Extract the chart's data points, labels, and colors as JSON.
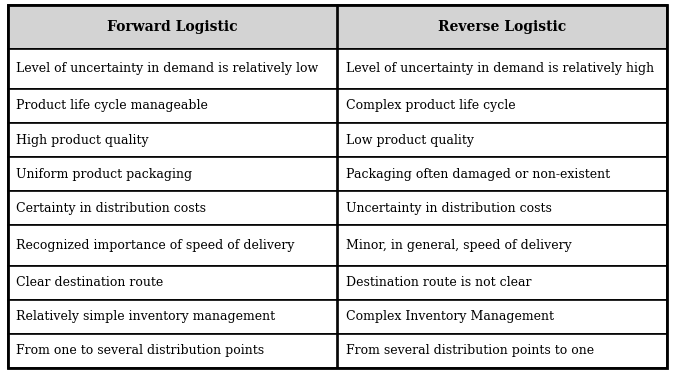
{
  "headers": [
    "Forward Logistic",
    "Reverse Logistic"
  ],
  "rows": [
    [
      "Level of uncertainty in demand is relatively low",
      "Level of uncertainty in demand is relatively high"
    ],
    [
      "Product life cycle manageable",
      "Complex product life cycle"
    ],
    [
      "High product quality",
      "Low product quality"
    ],
    [
      "Uniform product packaging",
      "Packaging often damaged or non-existent"
    ],
    [
      "Certainty in distribution costs",
      "Uncertainty in distribution costs"
    ],
    [
      "Recognized importance of speed of delivery",
      "Minor, in general, speed of delivery"
    ],
    [
      "Clear destination route",
      "Destination route is not clear"
    ],
    [
      "Relatively simple inventory management",
      "Complex Inventory Management"
    ],
    [
      "From one to several distribution points",
      "From several distribution points to one"
    ]
  ],
  "header_bg": "#d3d3d3",
  "row_bg": "#ffffff",
  "border_color": "#000000",
  "header_font_size": 10,
  "body_font_size": 9,
  "text_color": "#000000",
  "fig_bg": "#ffffff"
}
